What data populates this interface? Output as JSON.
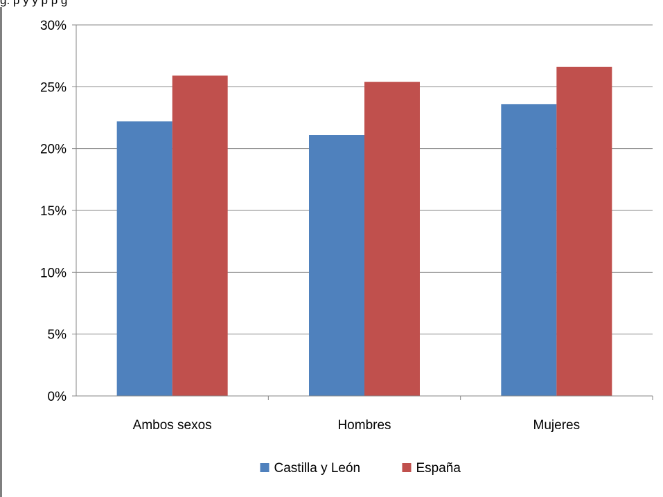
{
  "caption": "g.                                  p                                y          y p      p g",
  "chart_data": {
    "type": "bar",
    "categories": [
      "Ambos sexos",
      "Hombres",
      "Mujeres"
    ],
    "series": [
      {
        "name": "Castilla y León",
        "values": [
          22.2,
          21.1,
          23.6
        ],
        "color": "#4f81bd"
      },
      {
        "name": "España",
        "values": [
          25.9,
          25.4,
          26.6
        ],
        "color": "#c0504d"
      }
    ],
    "yticks": [
      "0%",
      "5%",
      "10%",
      "15%",
      "20%",
      "25%",
      "30%"
    ],
    "ylim": [
      0,
      30
    ],
    "grid": true,
    "legend_position": "bottom"
  }
}
